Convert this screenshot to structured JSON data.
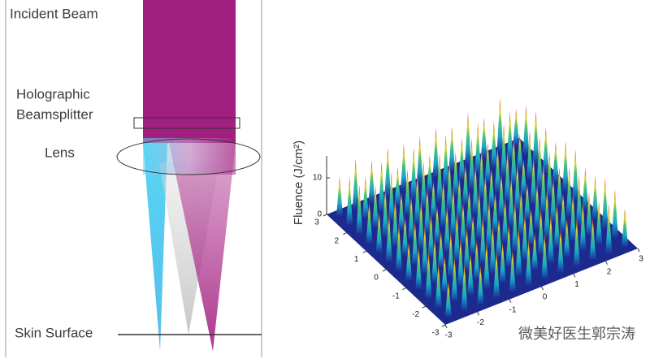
{
  "diagram": {
    "labels": {
      "incident_beam": "Incident Beam",
      "beamsplitter": [
        "Holographic",
        "Beamsplitter"
      ],
      "lens": "Lens",
      "skin_surface": "Skin Surface"
    },
    "plot": {
      "z_label": "Fluence (J/cm²)",
      "z_ticks": [
        0,
        10
      ],
      "x_ticks": [
        -3,
        -2,
        -1,
        0,
        1,
        2,
        3
      ],
      "y_ticks": [
        3,
        2,
        1,
        0,
        -1,
        -2,
        -3
      ]
    },
    "watermark": "微美好医生郭宗涛"
  }
}
